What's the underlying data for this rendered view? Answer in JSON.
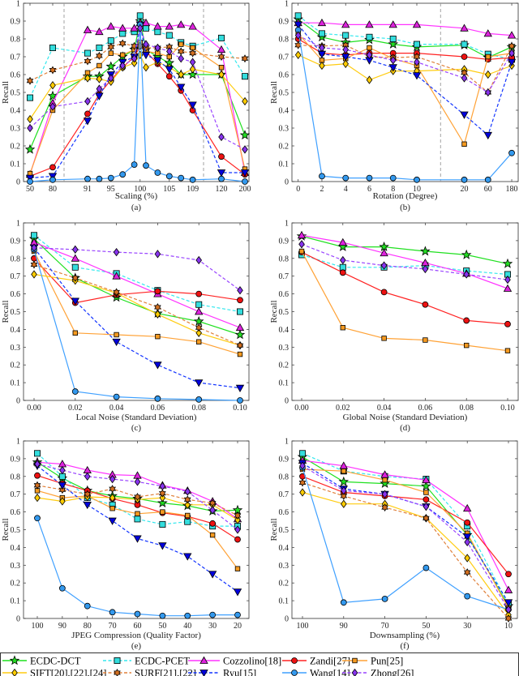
{
  "series_styles": [
    {
      "name": "ECDC-DCT",
      "color": "#1fe01f",
      "fill": "#22dd22",
      "marker": "star",
      "dash": false
    },
    {
      "name": "ECDC-PCET",
      "color": "#33e8ee",
      "fill": "#33dddd",
      "marker": "square",
      "dash": true
    },
    {
      "name": "Cozzolino[18]",
      "color": "#ff33ff",
      "fill": "#dd22dd",
      "marker": "triangle",
      "dash": false
    },
    {
      "name": "Zandi[27]",
      "color": "#ff2222",
      "fill": "#ee1111",
      "marker": "circle",
      "dash": false
    },
    {
      "name": "Pun[25]",
      "color": "#ffa236",
      "fill": "#f59a20",
      "marker": "square-small",
      "dash": false
    },
    {
      "name": "SIFT[20],[22],[24]",
      "color": "#ffcc11",
      "fill": "#ffcc00",
      "marker": "diamond",
      "dash": false
    },
    {
      "name": "SURF[21],[22]",
      "color": "#e0803a",
      "fill": "#d47020",
      "marker": "hexagram",
      "dash": true
    },
    {
      "name": "Ryu[15]",
      "color": "#1133ff",
      "fill": "#0000dd",
      "marker": "triangle-down",
      "dash": true
    },
    {
      "name": "Wang[14]",
      "color": "#3fa0ff",
      "fill": "#3399ee",
      "marker": "circle",
      "dash": false
    },
    {
      "name": "Zhong[26]",
      "color": "#9944ff",
      "fill": "#8833ee",
      "marker": "diamond",
      "dash": true
    }
  ],
  "chart_data": [
    {
      "type": "line",
      "panel_label": "(a)",
      "xlabel": "Scaling (%)",
      "ylabel": "Recall",
      "ylim": [
        0,
        1
      ],
      "yticks": [
        "0",
        "0.1",
        "0.2",
        "0.3",
        "0.4",
        "0.5",
        "0.6",
        "0.7",
        "0.8",
        "0.9",
        "1"
      ],
      "x": [
        50,
        80,
        91,
        93,
        95,
        97,
        99,
        100,
        101,
        103,
        105,
        107,
        109,
        120,
        200
      ],
      "xticks": [
        "50",
        "80",
        "91",
        "95",
        "100",
        "105",
        "109",
        "120",
        "200"
      ],
      "vlines_between": [
        [
          80,
          91
        ],
        [
          109,
          120
        ]
      ],
      "series": [
        {
          "name": "ECDC-DCT",
          "values": [
            0.18,
            0.48,
            0.59,
            0.59,
            0.645,
            0.7,
            0.74,
            0.9,
            0.74,
            0.7,
            0.665,
            0.6,
            0.6,
            0.6,
            0.26
          ]
        },
        {
          "name": "ECDC-PCET",
          "values": [
            0.47,
            0.75,
            0.72,
            0.75,
            0.79,
            0.83,
            0.84,
            0.93,
            0.86,
            0.84,
            0.82,
            0.78,
            0.76,
            0.805,
            0.59
          ]
        },
        {
          "name": "Cozzolino[18]",
          "values": [
            0.04,
            0.44,
            0.85,
            0.84,
            0.87,
            0.86,
            0.86,
            0.89,
            0.89,
            0.87,
            0.87,
            0.88,
            0.87,
            0.74,
            0.05
          ]
        },
        {
          "name": "Zandi[27]",
          "values": [
            0.03,
            0.08,
            0.38,
            0.49,
            0.57,
            0.64,
            0.7,
            0.76,
            0.73,
            0.66,
            0.59,
            0.51,
            0.4,
            0.14,
            0.04
          ]
        },
        {
          "name": "Pun[25]",
          "values": [
            0.045,
            0.4,
            0.61,
            0.65,
            0.72,
            0.71,
            0.74,
            0.78,
            0.73,
            0.72,
            0.7,
            0.77,
            0.75,
            0.64,
            0.07
          ]
        },
        {
          "name": "SIFT[20],[22],[24]",
          "values": [
            0.35,
            0.54,
            0.58,
            0.575,
            0.56,
            0.64,
            0.665,
            0.71,
            0.64,
            0.67,
            0.64,
            0.6,
            0.63,
            0.6,
            0.45
          ]
        },
        {
          "name": "SURF[21],[22]",
          "values": [
            0.565,
            0.625,
            0.675,
            0.705,
            0.755,
            0.775,
            0.76,
            0.76,
            0.75,
            0.75,
            0.755,
            0.73,
            0.72,
            0.7,
            0.69
          ]
        },
        {
          "name": "Ryu[15]",
          "values": [
            0.02,
            0.03,
            0.34,
            0.48,
            0.6,
            0.67,
            0.7,
            0.88,
            0.71,
            0.68,
            0.63,
            0.53,
            0.43,
            0.05,
            0.05
          ]
        },
        {
          "name": "Wang[14]",
          "values": [
            0.0,
            0.01,
            0.015,
            0.015,
            0.02,
            0.04,
            0.095,
            0.88,
            0.09,
            0.05,
            0.03,
            0.02,
            0.01,
            0.015,
            0.0
          ]
        },
        {
          "name": "Zhong[26]",
          "values": [
            0.3,
            0.42,
            0.45,
            0.52,
            0.58,
            0.65,
            0.69,
            0.86,
            0.77,
            0.75,
            0.73,
            0.69,
            0.67,
            0.25,
            0.18
          ]
        }
      ]
    },
    {
      "type": "line",
      "panel_label": "(b)",
      "xlabel": "Rotation (Degree)",
      "ylabel": "Recall",
      "ylim": [
        0,
        1
      ],
      "yticks": [
        "0",
        "0.1",
        "0.2",
        "0.3",
        "0.4",
        "0.5",
        "0.6",
        "0.7",
        "0.8",
        "0.9",
        "1"
      ],
      "x": [
        0,
        2,
        4,
        6,
        8,
        10,
        20,
        60,
        180
      ],
      "xticks": [
        "0",
        "2",
        "4",
        "6",
        "8",
        "10",
        "20",
        "60",
        "180"
      ],
      "vlines_between": [
        [
          10,
          20
        ]
      ],
      "series": [
        {
          "name": "ECDC-DCT",
          "values": [
            0.91,
            0.81,
            0.78,
            0.795,
            0.77,
            0.755,
            0.765,
            0.695,
            0.755
          ]
        },
        {
          "name": "ECDC-PCET",
          "values": [
            0.93,
            0.83,
            0.82,
            0.81,
            0.8,
            0.77,
            0.77,
            0.715,
            0.685
          ]
        },
        {
          "name": "Cozzolino[18]",
          "values": [
            0.89,
            0.89,
            0.88,
            0.88,
            0.88,
            0.88,
            0.86,
            0.83,
            0.82
          ]
        },
        {
          "name": "Zandi[27]",
          "values": [
            0.8,
            0.72,
            0.71,
            0.72,
            0.72,
            0.72,
            0.7,
            0.685,
            0.695
          ]
        },
        {
          "name": "Pun[25]",
          "values": [
            0.83,
            0.68,
            0.69,
            0.75,
            0.69,
            0.65,
            0.21,
            0.7,
            0.72
          ]
        },
        {
          "name": "SIFT[20],[22],[24]",
          "values": [
            0.71,
            0.65,
            0.66,
            0.57,
            0.62,
            0.62,
            0.63,
            0.6,
            0.65
          ]
        },
        {
          "name": "SURF[21],[22]",
          "values": [
            0.765,
            0.76,
            0.765,
            0.7,
            0.695,
            0.7,
            0.61,
            0.5,
            0.76
          ]
        },
        {
          "name": "Ryu[15]",
          "values": [
            0.88,
            0.715,
            0.7,
            0.68,
            0.64,
            0.595,
            0.375,
            0.26,
            0.67
          ]
        },
        {
          "name": "Wang[14]",
          "values": [
            0.85,
            0.03,
            0.02,
            0.02,
            0.02,
            0.01,
            0.01,
            0.01,
            0.16
          ]
        },
        {
          "name": "Zhong[26]",
          "values": [
            0.82,
            0.75,
            0.74,
            0.71,
            0.68,
            0.67,
            0.58,
            0.5,
            0.72
          ]
        }
      ]
    },
    {
      "type": "line",
      "panel_label": "(c)",
      "xlabel": "Local Noise (Standard Deviation)",
      "ylabel": "Recall",
      "ylim": [
        0,
        1
      ],
      "yticks": [
        "0",
        "0.1",
        "0.2",
        "0.3",
        "0.4",
        "0.5",
        "0.6",
        "0.7",
        "0.8",
        "0.9",
        "1"
      ],
      "x": [
        0.0,
        0.02,
        0.04,
        0.06,
        0.08,
        0.1
      ],
      "xticks": [
        "0.00",
        "0.02",
        "0.04",
        "0.06",
        "0.08",
        "0.10"
      ],
      "series": [
        {
          "name": "ECDC-DCT",
          "values": [
            0.91,
            0.69,
            0.58,
            0.49,
            0.445,
            0.37
          ]
        },
        {
          "name": "ECDC-PCET",
          "values": [
            0.93,
            0.75,
            0.715,
            0.62,
            0.54,
            0.5
          ]
        },
        {
          "name": "Cozzolino[18]",
          "values": [
            0.89,
            0.8,
            0.7,
            0.6,
            0.5,
            0.41
          ]
        },
        {
          "name": "Zandi[27]",
          "values": [
            0.8,
            0.55,
            0.595,
            0.615,
            0.6,
            0.565
          ]
        },
        {
          "name": "Pun[25]",
          "values": [
            0.84,
            0.38,
            0.37,
            0.36,
            0.33,
            0.26
          ]
        },
        {
          "name": "SIFT[20],[22],[24]",
          "values": [
            0.71,
            0.675,
            0.605,
            0.485,
            0.38,
            0.31
          ]
        },
        {
          "name": "SURF[21],[22]",
          "values": [
            0.765,
            0.69,
            0.61,
            0.525,
            0.41,
            0.31
          ]
        },
        {
          "name": "Ryu[15]",
          "values": [
            0.86,
            0.56,
            0.33,
            0.2,
            0.1,
            0.07
          ]
        },
        {
          "name": "Wang[14]",
          "values": [
            0.85,
            0.05,
            0.02,
            0.01,
            0.005,
            0.0
          ]
        },
        {
          "name": "Zhong[26]",
          "values": [
            0.86,
            0.85,
            0.835,
            0.825,
            0.79,
            0.62
          ]
        }
      ]
    },
    {
      "type": "line",
      "panel_label": "(d)",
      "xlabel": "Global Noise (Standard Deviation)",
      "ylabel": "Recall",
      "ylim": [
        0,
        1
      ],
      "yticks": [
        "0",
        "0.1",
        "0.2",
        "0.3",
        "0.4",
        "0.5",
        "0.6",
        "0.7",
        "0.8",
        "0.9",
        "1"
      ],
      "x": [
        0.0,
        0.02,
        0.04,
        0.06,
        0.08,
        0.1
      ],
      "xticks": [
        "0.00",
        "0.02",
        "0.04",
        "0.06",
        "0.08",
        "0.10"
      ],
      "series": [
        {
          "name": "ECDC-DCT",
          "values": [
            0.925,
            0.865,
            0.865,
            0.84,
            0.82,
            0.77
          ]
        },
        {
          "name": "ECDC-PCET",
          "values": [
            0.82,
            0.75,
            0.75,
            0.76,
            0.73,
            0.71
          ]
        },
        {
          "name": "Cozzolino[18]",
          "values": [
            0.93,
            0.89,
            0.83,
            0.775,
            0.715,
            0.63
          ]
        },
        {
          "name": "Zandi[27]",
          "values": [
            0.835,
            0.72,
            0.61,
            0.54,
            0.45,
            0.43
          ]
        },
        {
          "name": "Pun[25]",
          "values": [
            0.84,
            0.41,
            0.35,
            0.34,
            0.31,
            0.28
          ]
        },
        {
          "name": "Zhong[26]",
          "values": [
            0.88,
            0.79,
            0.76,
            0.74,
            0.71,
            0.68
          ]
        }
      ]
    },
    {
      "type": "line",
      "panel_label": "(e)",
      "xlabel": "JPEG Compression (Quality Factor)",
      "ylabel": "Recall",
      "ylim": [
        0,
        1
      ],
      "yticks": [
        "0",
        "0.1",
        "0.2",
        "0.3",
        "0.4",
        "0.5",
        "0.6",
        "0.7",
        "0.8",
        "0.9",
        "1"
      ],
      "x": [
        100,
        90,
        80,
        70,
        60,
        50,
        40,
        30,
        20
      ],
      "xticks": [
        "100",
        "90",
        "80",
        "70",
        "60",
        "50",
        "40",
        "30",
        "20"
      ],
      "series": [
        {
          "name": "ECDC-DCT",
          "values": [
            0.88,
            0.79,
            0.72,
            0.69,
            0.675,
            0.65,
            0.635,
            0.605,
            0.61
          ]
        },
        {
          "name": "ECDC-PCET",
          "values": [
            0.93,
            0.8,
            0.68,
            0.64,
            0.56,
            0.53,
            0.545,
            0.52,
            0.52
          ]
        },
        {
          "name": "Cozzolino[18]",
          "values": [
            0.88,
            0.87,
            0.835,
            0.81,
            0.805,
            0.75,
            0.72,
            0.66,
            0.56
          ]
        },
        {
          "name": "Zandi[27]",
          "values": [
            0.805,
            0.76,
            0.72,
            0.675,
            0.64,
            0.595,
            0.575,
            0.535,
            0.445
          ]
        },
        {
          "name": "Pun[25]",
          "values": [
            0.72,
            0.68,
            0.69,
            0.62,
            0.59,
            0.6,
            0.58,
            0.47,
            0.28
          ]
        },
        {
          "name": "SIFT[20],[22],[24]",
          "values": [
            0.68,
            0.66,
            0.685,
            0.68,
            0.67,
            0.68,
            0.64,
            0.64,
            0.555
          ]
        },
        {
          "name": "SURF[21],[22]",
          "values": [
            0.75,
            0.725,
            0.7,
            0.73,
            0.685,
            0.705,
            0.67,
            0.65,
            0.58
          ]
        },
        {
          "name": "Ryu[15]",
          "values": [
            0.86,
            0.75,
            0.64,
            0.55,
            0.45,
            0.41,
            0.35,
            0.25,
            0.15
          ]
        },
        {
          "name": "Wang[14]",
          "values": [
            0.565,
            0.17,
            0.07,
            0.035,
            0.025,
            0.015,
            0.015,
            0.02,
            0.02
          ]
        },
        {
          "name": "Zhong[26]",
          "values": [
            0.87,
            0.835,
            0.8,
            0.785,
            0.77,
            0.745,
            0.715,
            0.61,
            0.5
          ]
        }
      ]
    },
    {
      "type": "line",
      "panel_label": "(f)",
      "xlabel": "Downsampling (%)",
      "ylabel": "Recall",
      "ylim": [
        0,
        1
      ],
      "yticks": [
        "0",
        "0.1",
        "0.2",
        "0.3",
        "0.4",
        "0.5",
        "0.6",
        "0.7",
        "0.8",
        "0.9",
        "1"
      ],
      "x": [
        100,
        90,
        70,
        50,
        30,
        10
      ],
      "xticks": [
        "100",
        "90",
        "70",
        "50",
        "30",
        "10"
      ],
      "series": [
        {
          "name": "ECDC-DCT",
          "values": [
            0.91,
            0.77,
            0.76,
            0.745,
            0.47,
            0.07
          ]
        },
        {
          "name": "ECDC-PCET",
          "values": [
            0.93,
            0.83,
            0.8,
            0.785,
            0.52,
            0.08
          ]
        },
        {
          "name": "Cozzolino[18]",
          "values": [
            0.89,
            0.86,
            0.81,
            0.78,
            0.62,
            0.16
          ]
        },
        {
          "name": "Zandi[27]",
          "values": [
            0.8,
            0.71,
            0.69,
            0.67,
            0.54,
            0.25
          ]
        },
        {
          "name": "Pun[25]",
          "values": [
            0.84,
            0.83,
            0.78,
            0.71,
            0.48,
            0.06
          ]
        },
        {
          "name": "SIFT[20],[22],[24]",
          "values": [
            0.71,
            0.645,
            0.645,
            0.565,
            0.34,
            0.02
          ]
        },
        {
          "name": "SURF[21],[22]",
          "values": [
            0.765,
            0.69,
            0.625,
            0.565,
            0.26,
            0.0
          ]
        },
        {
          "name": "Ryu[15]",
          "values": [
            0.875,
            0.73,
            0.7,
            0.63,
            0.46,
            0.09
          ]
        },
        {
          "name": "Wang[14]",
          "values": [
            0.85,
            0.09,
            0.11,
            0.285,
            0.125,
            0.05
          ]
        },
        {
          "name": "Zhong[26]",
          "values": [
            0.86,
            0.72,
            0.7,
            0.63,
            0.43,
            0.05
          ]
        }
      ]
    }
  ]
}
